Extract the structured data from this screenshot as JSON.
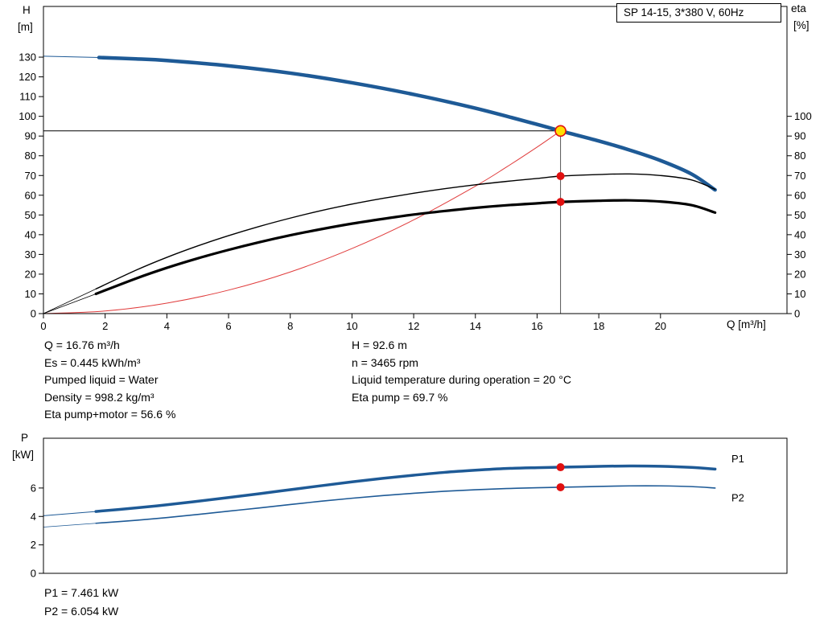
{
  "colors": {
    "curve_blue": "#1e5a96",
    "curve_red": "#e03c3c",
    "marker_red": "#e01010",
    "marker_yellow": "#ffdf00",
    "axis_black": "#000000"
  },
  "info": {
    "left": [
      "Q = 16.76 m³/h",
      "Es = 0.445 kWh/m³",
      "Pumped liquid = Water",
      "Density = 998.2 kg/m³",
      "Eta pump+motor = 56.6 %"
    ],
    "right": [
      "H = 92.6 m",
      "n = 3465 rpm",
      "Liquid temperature during operation = 20 °C",
      "Eta pump = 69.7 %"
    ]
  },
  "footer": [
    "P1 = 7.461 kW",
    "P2 = 6.054 kW"
  ],
  "chart_data": [
    {
      "type": "line",
      "title": "SP 14-15, 3*380 V, 60Hz",
      "xlabel": "Q [m³/h]",
      "ylabel_lines": [
        "H",
        "[m]"
      ],
      "y2label_lines": [
        "eta",
        "[%]"
      ],
      "xlim": [
        0,
        24.1
      ],
      "ylim": [
        0,
        155.7
      ],
      "x_ticks": [
        0,
        2,
        4,
        6,
        8,
        10,
        12,
        14,
        16,
        18,
        20
      ],
      "y_ticks": [
        0,
        10,
        20,
        30,
        40,
        50,
        60,
        70,
        80,
        90,
        100,
        110,
        120,
        130
      ],
      "y2_ticks": [
        0,
        10,
        20,
        30,
        40,
        50,
        60,
        70,
        80,
        90,
        100
      ],
      "grid": false,
      "duty_point": {
        "q": 16.76,
        "h": 92.6,
        "eta_pump": 69.7,
        "eta_pump_motor": 56.6
      },
      "ref_lines": [
        {
          "name": "duty-head-line",
          "color": "#000000",
          "width": 1,
          "points": [
            [
              0,
              92.6
            ],
            [
              16.76,
              92.6
            ]
          ]
        },
        {
          "name": "duty-flow-line",
          "color": "#555555",
          "width": 1,
          "points": [
            [
              16.76,
              0
            ],
            [
              16.76,
              92.6
            ]
          ]
        }
      ],
      "series": [
        {
          "name": "system-curve",
          "color": "#e03c3c",
          "width": 1,
          "points": [
            [
              0,
              0
            ],
            [
              2,
              1.3
            ],
            [
              4,
              5.3
            ],
            [
              6,
              11.9
            ],
            [
              8,
              21.1
            ],
            [
              10,
              33.0
            ],
            [
              12,
              47.5
            ],
            [
              14,
              64.6
            ],
            [
              15,
              74.2
            ],
            [
              16,
              84.4
            ],
            [
              16.76,
              92.6
            ]
          ]
        },
        {
          "name": "h-curve-lead",
          "color": "#1e5a96",
          "width": 1,
          "points": [
            [
              0,
              130.5
            ],
            [
              1.8,
              129.8
            ]
          ]
        },
        {
          "name": "h-curve",
          "color": "#1e5a96",
          "width": 4.5,
          "points": [
            [
              1.8,
              129.8
            ],
            [
              3,
              129.1
            ],
            [
              4,
              128.3
            ],
            [
              6,
              125.6
            ],
            [
              8,
              121.9
            ],
            [
              10,
              117.0
            ],
            [
              12,
              111.1
            ],
            [
              14,
              104.1
            ],
            [
              16,
              95.9
            ],
            [
              16.76,
              92.6
            ],
            [
              18,
              87.5
            ],
            [
              19,
              82.9
            ],
            [
              20,
              77.6
            ],
            [
              21,
              70.8
            ],
            [
              21.77,
              62.7
            ]
          ]
        },
        {
          "name": "eta-pump-curve-lead",
          "color": "#000000",
          "width": 0.8,
          "points": [
            [
              0,
              0
            ],
            [
              1.7,
              12.5
            ]
          ]
        },
        {
          "name": "eta-pump-curve",
          "color": "#000000",
          "width": 1.4,
          "points": [
            [
              1.7,
              12.5
            ],
            [
              3,
              22.0
            ],
            [
              4,
              28.5
            ],
            [
              5,
              34.3
            ],
            [
              6,
              39.5
            ],
            [
              7,
              44.2
            ],
            [
              8,
              48.4
            ],
            [
              9,
              52.2
            ],
            [
              10,
              55.5
            ],
            [
              11,
              58.4
            ],
            [
              12,
              61.0
            ],
            [
              13,
              63.3
            ],
            [
              14,
              65.3
            ],
            [
              15,
              67.0
            ],
            [
              16,
              68.5
            ],
            [
              16.76,
              69.7
            ],
            [
              18,
              70.5
            ],
            [
              19,
              70.8
            ],
            [
              20,
              70.0
            ],
            [
              21,
              67.8
            ],
            [
              21.77,
              63.0
            ]
          ]
        },
        {
          "name": "eta-pump-motor-curve-lead",
          "color": "#000000",
          "width": 0.8,
          "points": [
            [
              0,
              0
            ],
            [
              1.7,
              10.0
            ]
          ]
        },
        {
          "name": "eta-pump-motor-curve",
          "color": "#000000",
          "width": 3.2,
          "points": [
            [
              1.7,
              10.0
            ],
            [
              3,
              17.8
            ],
            [
              4,
              23.2
            ],
            [
              5,
              28.0
            ],
            [
              6,
              32.3
            ],
            [
              7,
              36.2
            ],
            [
              8,
              39.7
            ],
            [
              9,
              42.8
            ],
            [
              10,
              45.6
            ],
            [
              11,
              48.0
            ],
            [
              12,
              50.2
            ],
            [
              13,
              52.0
            ],
            [
              14,
              53.6
            ],
            [
              15,
              54.9
            ],
            [
              16,
              55.9
            ],
            [
              16.76,
              56.6
            ],
            [
              18,
              57.2
            ],
            [
              19,
              57.4
            ],
            [
              20,
              56.8
            ],
            [
              21,
              55.0
            ],
            [
              21.77,
              51.2
            ]
          ]
        }
      ],
      "markers": [
        {
          "name": "duty-point",
          "x": 16.76,
          "y": 92.6,
          "r": 6.5,
          "fill": "#ffdf00",
          "stroke": "#e01010",
          "stroke_width": 1.6
        },
        {
          "name": "eta-pump-point",
          "x": 16.76,
          "y": 69.7,
          "r": 5,
          "fill": "#e01010"
        },
        {
          "name": "eta-pump-motor-point",
          "x": 16.76,
          "y": 56.6,
          "r": 5,
          "fill": "#e01010"
        }
      ]
    },
    {
      "type": "line",
      "title": "",
      "xlabel": "",
      "ylabel_lines": [
        "P",
        "[kW]"
      ],
      "xlim": [
        0,
        24.1
      ],
      "ylim": [
        0,
        9.5
      ],
      "x_ticks": [],
      "y_ticks": [
        0,
        2,
        4,
        6
      ],
      "grid": false,
      "series": [
        {
          "name": "p1-curve-lead",
          "color": "#1e5a96",
          "width": 1,
          "points": [
            [
              0,
              4.05
            ],
            [
              1.7,
              4.35
            ]
          ]
        },
        {
          "name": "p1-curve",
          "color": "#1e5a96",
          "width": 3.5,
          "points": [
            [
              1.7,
              4.35
            ],
            [
              3,
              4.6
            ],
            [
              4,
              4.82
            ],
            [
              5,
              5.07
            ],
            [
              6,
              5.33
            ],
            [
              7,
              5.6
            ],
            [
              8,
              5.88
            ],
            [
              9,
              6.16
            ],
            [
              10,
              6.43
            ],
            [
              11,
              6.68
            ],
            [
              12,
              6.9
            ],
            [
              13,
              7.1
            ],
            [
              14,
              7.25
            ],
            [
              15,
              7.37
            ],
            [
              16,
              7.43
            ],
            [
              16.76,
              7.461
            ],
            [
              18,
              7.52
            ],
            [
              19,
              7.55
            ],
            [
              20,
              7.53
            ],
            [
              21,
              7.45
            ],
            [
              21.77,
              7.33
            ]
          ]
        },
        {
          "name": "p2-curve-lead",
          "color": "#1e5a96",
          "width": 0.8,
          "points": [
            [
              0,
              3.25
            ],
            [
              1.7,
              3.52
            ]
          ]
        },
        {
          "name": "p2-curve",
          "color": "#1e5a96",
          "width": 1.6,
          "points": [
            [
              1.7,
              3.52
            ],
            [
              3,
              3.73
            ],
            [
              4,
              3.92
            ],
            [
              5,
              4.14
            ],
            [
              6,
              4.37
            ],
            [
              7,
              4.6
            ],
            [
              8,
              4.84
            ],
            [
              9,
              5.07
            ],
            [
              10,
              5.28
            ],
            [
              11,
              5.47
            ],
            [
              12,
              5.63
            ],
            [
              13,
              5.77
            ],
            [
              14,
              5.88
            ],
            [
              15,
              5.96
            ],
            [
              16,
              6.02
            ],
            [
              16.76,
              6.054
            ],
            [
              18,
              6.11
            ],
            [
              19,
              6.15
            ],
            [
              20,
              6.15
            ],
            [
              21,
              6.1
            ],
            [
              21.77,
              6.0
            ]
          ]
        }
      ],
      "markers": [
        {
          "name": "p1-point",
          "x": 16.76,
          "y": 7.461,
          "r": 5,
          "fill": "#e01010"
        },
        {
          "name": "p2-point",
          "x": 16.76,
          "y": 6.054,
          "r": 5,
          "fill": "#e01010"
        }
      ],
      "annotations": [
        {
          "name": "p1-curve-label",
          "text": "P1",
          "x": 22.3,
          "y": 7.8,
          "color": "#1e5a96"
        },
        {
          "name": "p2-curve-label",
          "text": "P2",
          "x": 22.3,
          "y": 5.05,
          "color": "#1e5a96"
        }
      ]
    }
  ]
}
